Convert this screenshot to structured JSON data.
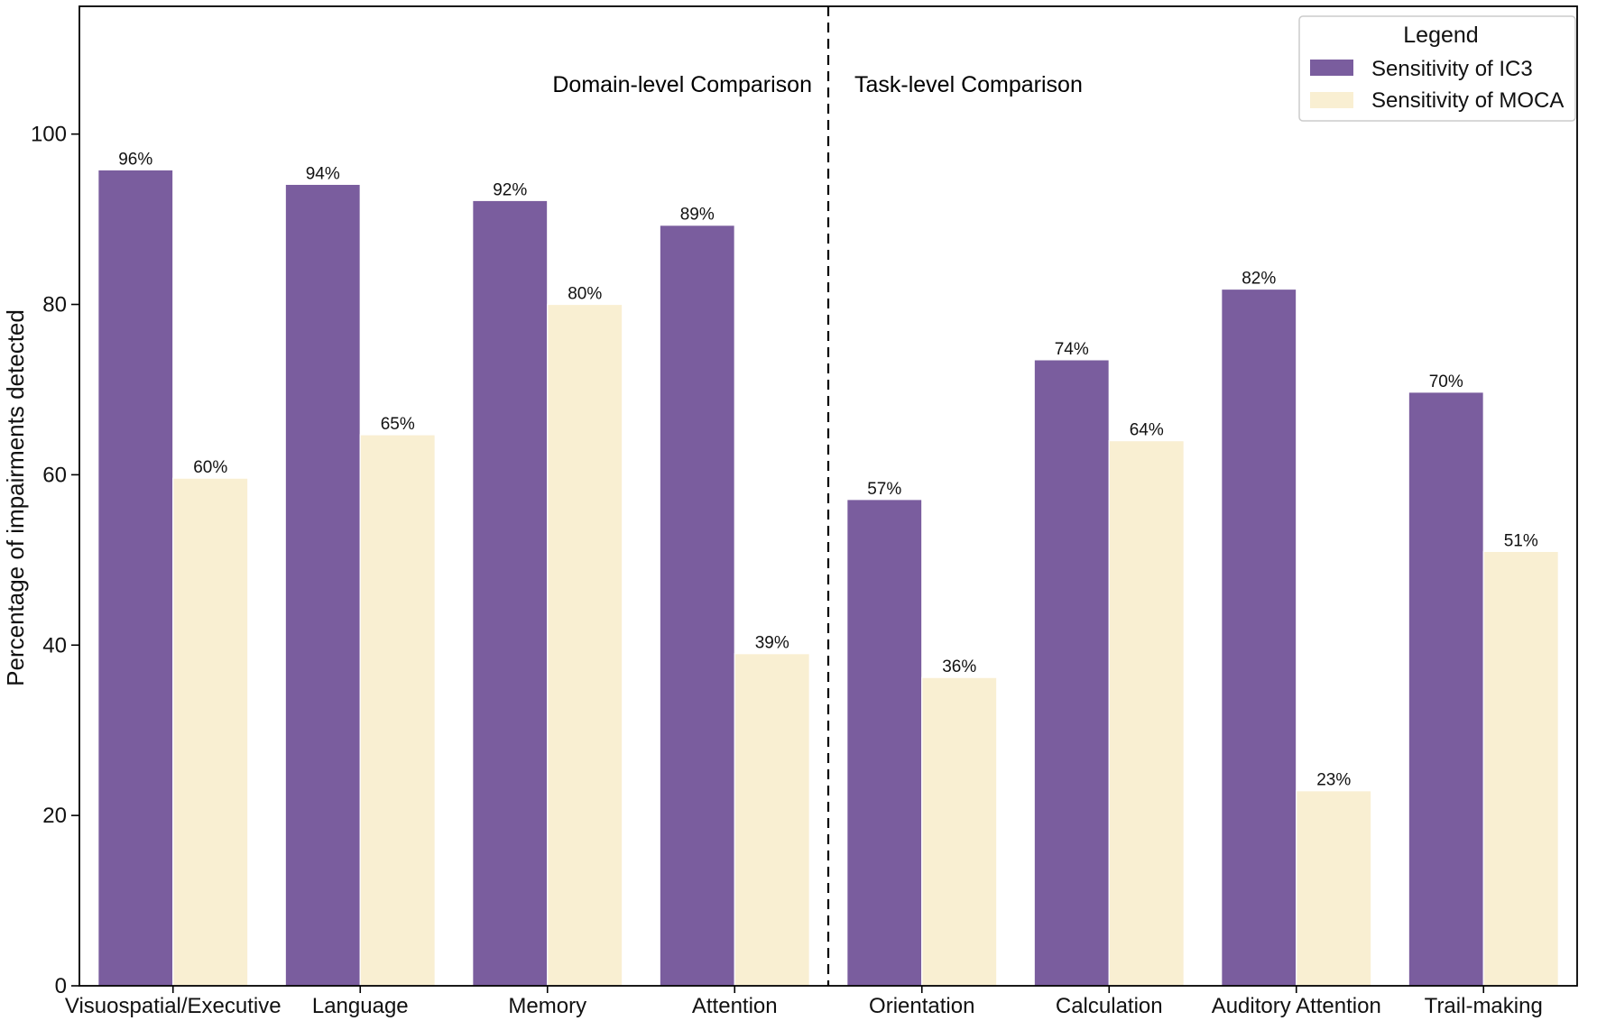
{
  "chart_data": {
    "type": "bar",
    "title": "",
    "xlabel": "",
    "ylabel": "Percentage of impairments detected",
    "ylim": [
      0,
      115
    ],
    "yticks": [
      0,
      20,
      40,
      60,
      80,
      100
    ],
    "ytick_labels": [
      "0",
      "20",
      "40",
      "60",
      "80",
      "100"
    ],
    "categories": [
      "Visuospatial/Executive",
      "Language",
      "Memory",
      "Attention",
      "Orientation",
      "Calculation",
      "Auditory Attention",
      "Trail-making"
    ],
    "series": [
      {
        "name": "Sensitivity of IC3",
        "color": "#7a5d9e",
        "values": [
          95.8,
          94.1,
          92.2,
          89.3,
          57.1,
          73.5,
          81.8,
          69.7
        ],
        "labels": [
          "96%",
          "94%",
          "92%",
          "89%",
          "57%",
          "74%",
          "82%",
          "70%"
        ]
      },
      {
        "name": "Sensitivity of MOCA",
        "color": "#f9efd2",
        "values": [
          59.6,
          64.7,
          80.0,
          39.0,
          36.2,
          64.0,
          22.9,
          51.0
        ],
        "labels": [
          "60%",
          "65%",
          "80%",
          "39%",
          "36%",
          "64%",
          "23%",
          "51%"
        ]
      }
    ],
    "grid": false,
    "legend": {
      "title": "Legend",
      "position": "top-right"
    },
    "annotations": {
      "divider_style": "dashed",
      "left_section_label": "Domain-level Comparison",
      "right_section_label": "Task-level Comparison"
    }
  }
}
